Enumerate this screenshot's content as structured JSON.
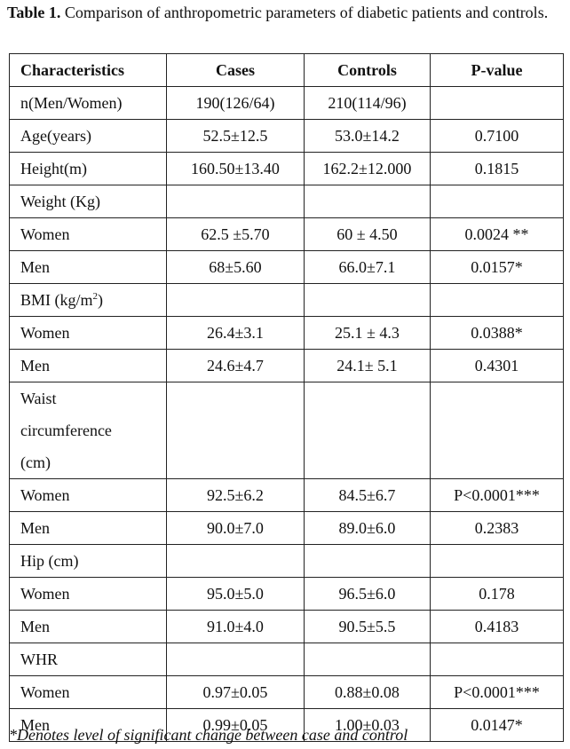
{
  "caption": {
    "label": "Table 1.",
    "text": " Comparison of anthropometric parameters of diabetic patients and controls."
  },
  "table": {
    "header": [
      "Characteristics",
      "Cases",
      "Controls",
      "P-value"
    ],
    "rows": [
      [
        "n(Men/Women)",
        "190(126/64)",
        "210(114/96)",
        null
      ],
      [
        "Age(years)",
        "52.5±12.5",
        "53.0±14.2",
        "0.7100"
      ],
      [
        "Height(m)",
        "160.50±13.40",
        "162.2±12.000",
        "0.1815"
      ],
      [
        "Weight (Kg)",
        null,
        null,
        null
      ],
      [
        "Women",
        "62.5 ±5.70",
        "60 ± 4.50",
        "0.0024 **"
      ],
      [
        "Men",
        "68±5.60",
        "66.0±7.1",
        "0.0157*"
      ],
      [
        {
          "text": "BMI (kg/m",
          "sup": "2",
          "after": ")"
        },
        null,
        null,
        null
      ],
      [
        "Women",
        "26.4±3.1",
        "25.1 ± 4.3",
        "0.0388*"
      ],
      [
        "Men",
        "24.6±4.7",
        "24.1± 5.1",
        "0.4301"
      ],
      [
        "Waist circumference (cm)",
        null,
        null,
        null
      ],
      [
        "Women",
        "92.5±6.2",
        "84.5±6.7",
        "P<0.0001***"
      ],
      [
        "Men",
        "90.0±7.0",
        "89.0±6.0",
        "0.2383"
      ],
      [
        "Hip (cm)",
        null,
        null,
        null
      ],
      [
        "Women",
        "95.0±5.0",
        "96.5±6.0",
        "0.178"
      ],
      [
        "Men",
        "91.0±4.0",
        "90.5±5.5",
        "0.4183"
      ],
      [
        "WHR",
        null,
        null,
        null
      ],
      [
        "Women",
        "0.97±0.05",
        "0.88±0.08",
        "P<0.0001***"
      ],
      [
        "Men",
        "0.99±0.05",
        "1.00±0.03",
        "0.0147*"
      ]
    ]
  },
  "footnote": "*Denotes level of significant change between case and control"
}
